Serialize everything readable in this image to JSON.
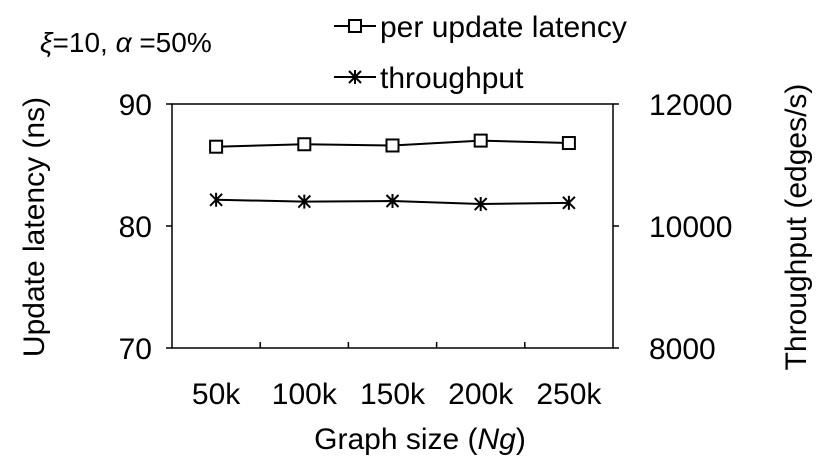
{
  "chart_data": {
    "type": "line",
    "annotation": {
      "xi_symbol": "ξ",
      "xi_text": "=10, ",
      "alpha_symbol": "α",
      "alpha_text": " =50%"
    },
    "categories": [
      "50k",
      "100k",
      "150k",
      "200k",
      "250k"
    ],
    "xlabel": {
      "prefix": "Graph size (",
      "var": "Ng",
      "suffix": ")"
    },
    "ylabel_left": "Update latency (ns)",
    "ylabel_right": "Throughput (edges/s)",
    "ylim_left": [
      70,
      90
    ],
    "yticks_left": [
      "70",
      "80",
      "90"
    ],
    "ylim_right": [
      8000,
      12000
    ],
    "yticks_right": [
      "8000",
      "10000",
      "12000"
    ],
    "legend_position": "top-center",
    "series": [
      {
        "name": "per update latency",
        "axis": "left",
        "marker": "square",
        "values": [
          86.5,
          86.7,
          86.6,
          87.0,
          86.8
        ]
      },
      {
        "name": "throughput",
        "axis": "right",
        "marker": "star",
        "values": [
          10430,
          10400,
          10410,
          10360,
          10380
        ]
      }
    ]
  }
}
